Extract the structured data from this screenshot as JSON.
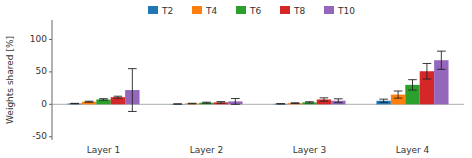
{
  "chart_data": {
    "type": "bar",
    "ylabel": "Weights shared [%]",
    "categories": [
      "Layer 1",
      "Layer 2",
      "Layer 3",
      "Layer 4"
    ],
    "series": [
      {
        "name": "T2",
        "color": "#1f77b4",
        "values": [
          1.2,
          0.5,
          0.8,
          5.5
        ],
        "errors": [
          0.3,
          0.2,
          0.3,
          2.5
        ]
      },
      {
        "name": "T4",
        "color": "#ff7f0e",
        "values": [
          4.0,
          1.2,
          1.8,
          15.0
        ],
        "errors": [
          0.8,
          0.4,
          0.6,
          5.5
        ]
      },
      {
        "name": "T6",
        "color": "#2ca02c",
        "values": [
          7.5,
          2.5,
          3.0,
          30.0
        ],
        "errors": [
          1.2,
          0.8,
          1.0,
          8.0
        ]
      },
      {
        "name": "T8",
        "color": "#d62728",
        "values": [
          11.0,
          3.0,
          7.5,
          51.0
        ],
        "errors": [
          1.5,
          1.2,
          2.5,
          12.0
        ]
      },
      {
        "name": "T10",
        "color": "#9467bd",
        "values": [
          22.0,
          4.5,
          5.5,
          68.0
        ],
        "errors": [
          33.0,
          4.5,
          3.0,
          14.0
        ]
      }
    ],
    "ylim": [
      -55,
      130
    ],
    "yticks": [
      -50,
      0,
      50,
      100
    ],
    "grid": false,
    "legend": "top"
  }
}
